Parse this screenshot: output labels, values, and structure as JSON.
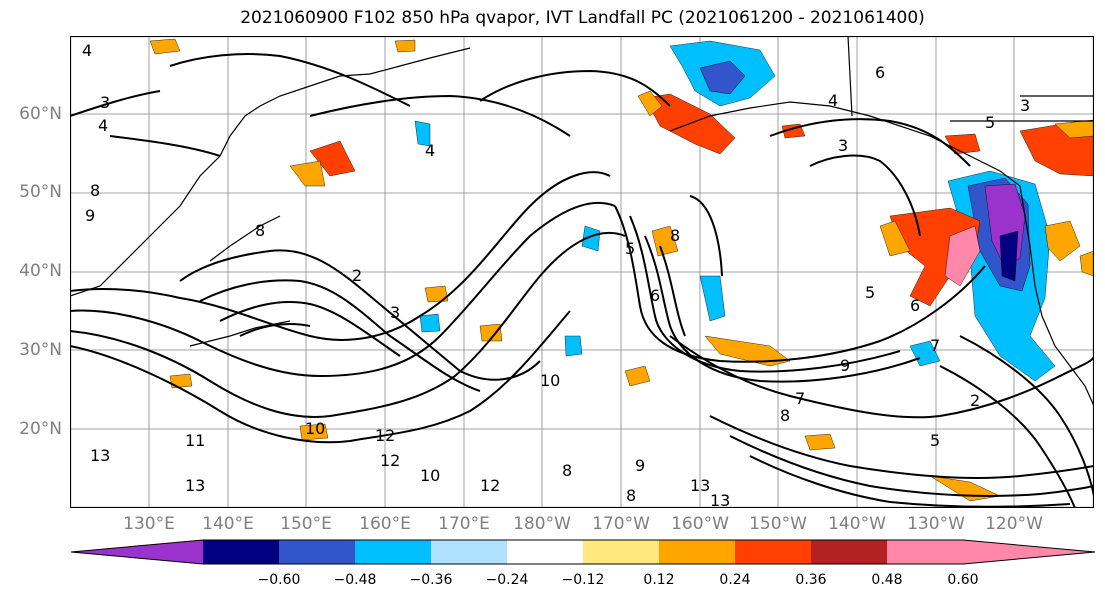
{
  "title": "2021060900 F102 850 hPa qvapor, IVT Landfall PC (2021061200 - 2021061400)",
  "map": {
    "projection": "PlateCarree",
    "lat_labels": [
      "60°N",
      "50°N",
      "40°N",
      "30°N",
      "20°N"
    ],
    "lon_labels": [
      "130°E",
      "140°E",
      "150°E",
      "160°E",
      "170°E",
      "180°W",
      "170°W",
      "160°W",
      "150°W",
      "140°W",
      "130°W",
      "120°W"
    ],
    "gridlines": true,
    "coastline_color": "#000000",
    "contour_color": "#000000",
    "contour_labels": [
      "4",
      "3",
      "4",
      "8",
      "9",
      "8",
      "2",
      "3",
      "12",
      "13",
      "10",
      "12",
      "13",
      "10",
      "11",
      "12",
      "8",
      "9",
      "8",
      "10",
      "13",
      "13",
      "9",
      "8",
      "7",
      "6",
      "5",
      "8",
      "5",
      "3",
      "6",
      "5",
      "6",
      "7",
      "2",
      "5",
      "4",
      "3",
      "4"
    ]
  },
  "colorbar": {
    "ticks": [
      "−0.60",
      "−0.48",
      "−0.36",
      "−0.24",
      "−0.12",
      "0.12",
      "0.24",
      "0.36",
      "0.48",
      "0.60"
    ],
    "colors": [
      "#9933cc",
      "#000080",
      "#3355cc",
      "#00bfff",
      "#b0e2ff",
      "#ffffff",
      "#ffe880",
      "#ffa500",
      "#ff4000",
      "#b22222",
      "#ff88aa",
      "#ff88aa"
    ],
    "extend": "both"
  }
}
